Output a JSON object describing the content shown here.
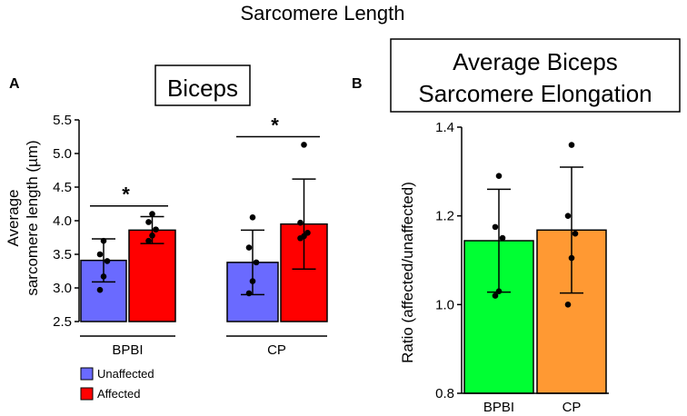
{
  "figure": {
    "title": "Sarcomere Length"
  },
  "colors": {
    "unaffected": "#6a6aff",
    "affected": "#ff0000",
    "bpbi": "#00ff33",
    "cp": "#ff9933",
    "axis": "#000000"
  },
  "chart_data": [
    {
      "panel_label": "A",
      "title": "Biceps",
      "type": "bar",
      "ylabel_line1": "Average",
      "ylabel_line2": "sarcomere length (µm)",
      "ylim": [
        2.5,
        5.5
      ],
      "yticks": [
        "2.5",
        "3.0",
        "3.5",
        "4.0",
        "4.5",
        "5.0",
        "5.5"
      ],
      "categories": [
        "BPBI",
        "CP"
      ],
      "series": [
        {
          "name": "Unaffected",
          "values": [
            3.41,
            3.38
          ],
          "sd": [
            0.32,
            0.48
          ],
          "points": [
            [
              3.7,
              3.5,
              3.4,
              3.17,
              2.97
            ],
            [
              4.05,
              3.6,
              3.38,
              3.1,
              2.92
            ]
          ]
        },
        {
          "name": "Affected",
          "values": [
            3.86,
            3.95
          ],
          "sd": [
            0.2,
            0.67
          ],
          "points": [
            [
              4.1,
              3.98,
              3.87,
              3.78,
              3.7
            ],
            [
              5.13,
              3.97,
              3.82,
              3.77,
              3.74
            ]
          ]
        }
      ],
      "significance": [
        {
          "category": "BPBI",
          "label": "*",
          "y": 4.22
        },
        {
          "category": "CP",
          "label": "*",
          "y": 5.25
        }
      ],
      "legend": {
        "position": "bottom-left",
        "entries": [
          "Unaffected",
          "Affected"
        ]
      }
    },
    {
      "panel_label": "B",
      "title_line1": "Average Biceps",
      "title_line2": "Sarcomere Elongation",
      "type": "bar",
      "ylabel": "Ratio (affected/unaffected)",
      "ylim": [
        0.8,
        1.4
      ],
      "yticks": [
        "0.8",
        "1.0",
        "1.2",
        "1.4"
      ],
      "categories": [
        "BPBI",
        "CP"
      ],
      "values": [
        1.144,
        1.168
      ],
      "sd": [
        0.116,
        0.142
      ],
      "points": [
        [
          1.29,
          1.175,
          1.15,
          1.03,
          1.02
        ],
        [
          1.36,
          1.2,
          1.16,
          1.105,
          1.0
        ]
      ]
    }
  ]
}
